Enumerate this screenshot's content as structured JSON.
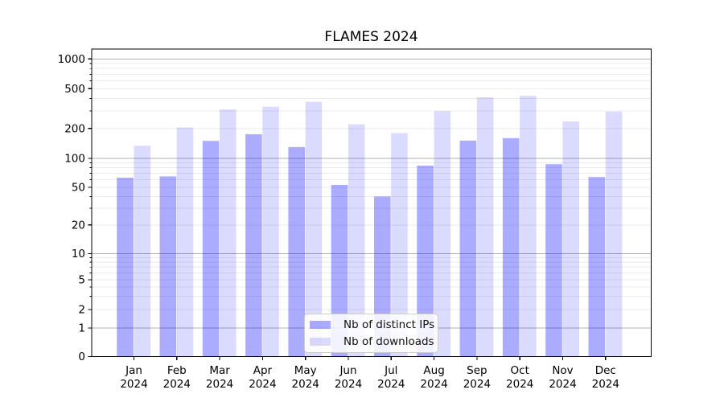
{
  "chart_data": {
    "type": "bar",
    "title": "FLAMES 2024",
    "categories": [
      "Jan",
      "Feb",
      "Mar",
      "Apr",
      "May",
      "Jun",
      "Jul",
      "Aug",
      "Sep",
      "Oct",
      "Nov",
      "Dec"
    ],
    "category_year": "2024",
    "series": [
      {
        "name": "Nb of distinct IPs",
        "color": "rgba(0,0,255,0.33)",
        "color_hex_on_white": "#ABABFA",
        "values": [
          63,
          65,
          150,
          175,
          130,
          53,
          40,
          84,
          151,
          160,
          87,
          64
        ]
      },
      {
        "name": "Nb of downloads",
        "color": "rgba(0,0,255,0.14)",
        "color_hex_on_white": "#DBDBFA",
        "values": [
          134,
          205,
          310,
          330,
          370,
          220,
          180,
          298,
          410,
          425,
          235,
          295
        ]
      }
    ],
    "yscale": "symlog",
    "yticks": [
      0,
      1,
      2,
      5,
      10,
      20,
      50,
      100,
      200,
      500,
      1000
    ],
    "ylim": [
      0,
      1250
    ],
    "xlabel": "",
    "ylabel": "",
    "grid": "both",
    "major_grid_color": "#b2b2b2",
    "minor_grid_color": "#ebebeb",
    "legend_position": "lower center"
  }
}
